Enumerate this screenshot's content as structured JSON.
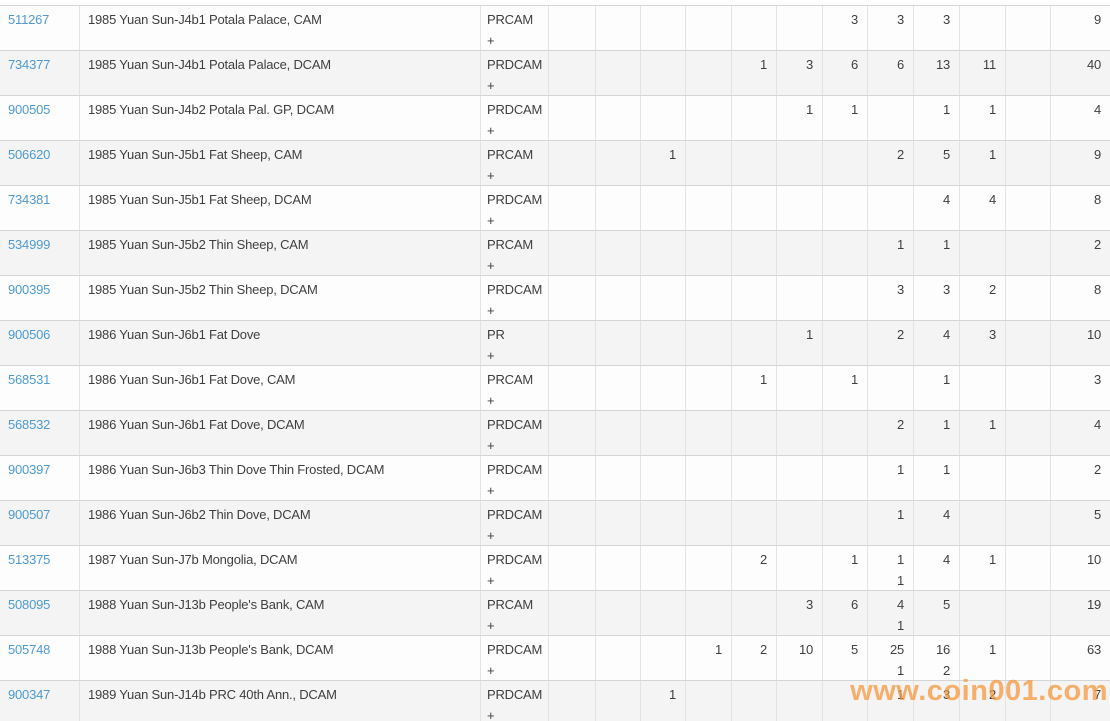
{
  "watermark": {
    "text": "www.coin001.com",
    "color": "#f7973d"
  },
  "colors": {
    "link": "#4f9ace",
    "text": "#3f3f3f",
    "row_alt_background": "#f4f4f4",
    "border_horizontal": "#d5d5d5",
    "border_vertical": "#e3e3e3"
  },
  "table": {
    "grade_column_count": 11,
    "rows": [
      {
        "cert": "511267",
        "description": "1985 Yuan Sun-J4b1 Potala Palace, CAM",
        "designation": "PRCAM",
        "designation_suffix": "+",
        "grades": [
          "",
          "",
          "",
          "",
          "",
          "",
          "3",
          "3",
          "3",
          "",
          ""
        ],
        "total": "9"
      },
      {
        "cert": "734377",
        "description": "1985 Yuan Sun-J4b1 Potala Palace, DCAM",
        "designation": "PRDCAM",
        "designation_suffix": "+",
        "grades": [
          "",
          "",
          "",
          "",
          "1",
          "3",
          "6",
          "6",
          "13",
          "11",
          ""
        ],
        "total": "40"
      },
      {
        "cert": "900505",
        "description": "1985 Yuan Sun-J4b2 Potala Pal. GP, DCAM",
        "designation": "PRDCAM",
        "designation_suffix": "+",
        "grades": [
          "",
          "",
          "",
          "",
          "",
          "1",
          "1",
          "",
          "1",
          "1",
          ""
        ],
        "total": "4"
      },
      {
        "cert": "506620",
        "description": "1985 Yuan Sun-J5b1 Fat Sheep, CAM",
        "designation": "PRCAM",
        "designation_suffix": "+",
        "grades": [
          "",
          "",
          "1",
          "",
          "",
          "",
          "",
          "2",
          "5",
          "1",
          ""
        ],
        "total": "9"
      },
      {
        "cert": "734381",
        "description": "1985 Yuan Sun-J5b1 Fat Sheep, DCAM",
        "designation": "PRDCAM",
        "designation_suffix": "+",
        "grades": [
          "",
          "",
          "",
          "",
          "",
          "",
          "",
          "",
          "4",
          "4",
          ""
        ],
        "total": "8"
      },
      {
        "cert": "534999",
        "description": "1985 Yuan Sun-J5b2 Thin Sheep, CAM",
        "designation": "PRCAM",
        "designation_suffix": "+",
        "grades": [
          "",
          "",
          "",
          "",
          "",
          "",
          "",
          "1",
          "1",
          "",
          ""
        ],
        "total": "2"
      },
      {
        "cert": "900395",
        "description": "1985 Yuan Sun-J5b2 Thin Sheep, DCAM",
        "designation": "PRDCAM",
        "designation_suffix": "+",
        "grades": [
          "",
          "",
          "",
          "",
          "",
          "",
          "",
          "3",
          "3",
          "2",
          ""
        ],
        "total": "8"
      },
      {
        "cert": "900506",
        "description": "1986 Yuan Sun-J6b1 Fat Dove",
        "designation": "PR",
        "designation_suffix": "+",
        "grades": [
          "",
          "",
          "",
          "",
          "",
          "1",
          "",
          "2",
          "4",
          "3",
          ""
        ],
        "total": "10"
      },
      {
        "cert": "568531",
        "description": "1986 Yuan Sun-J6b1 Fat Dove, CAM",
        "designation": "PRCAM",
        "designation_suffix": "+",
        "grades": [
          "",
          "",
          "",
          "",
          "1",
          "",
          "1",
          "",
          "1",
          "",
          ""
        ],
        "total": "3"
      },
      {
        "cert": "568532",
        "description": "1986 Yuan Sun-J6b1 Fat Dove, DCAM",
        "designation": "PRDCAM",
        "designation_suffix": "+",
        "grades": [
          "",
          "",
          "",
          "",
          "",
          "",
          "",
          "2",
          "1",
          "1",
          ""
        ],
        "total": "4"
      },
      {
        "cert": "900397",
        "description": "1986 Yuan Sun-J6b3 Thin Dove Thin Frosted, DCAM",
        "designation": "PRDCAM",
        "designation_suffix": "+",
        "grades": [
          "",
          "",
          "",
          "",
          "",
          "",
          "",
          "1",
          "1",
          "",
          ""
        ],
        "total": "2"
      },
      {
        "cert": "900507",
        "description": "1986 Yuan Sun-J6b2 Thin Dove, DCAM",
        "designation": "PRDCAM",
        "designation_suffix": "+",
        "grades": [
          "",
          "",
          "",
          "",
          "",
          "",
          "",
          "1",
          "4",
          "",
          ""
        ],
        "total": "5"
      },
      {
        "cert": "513375",
        "description": "1987 Yuan Sun-J7b Mongolia, DCAM",
        "designation": "PRDCAM",
        "designation_suffix": "+",
        "grades": [
          "",
          "",
          "",
          "",
          "2",
          "",
          "1",
          "1|1",
          "4",
          "1",
          ""
        ],
        "total": "10"
      },
      {
        "cert": "508095",
        "description": "1988 Yuan Sun-J13b People's Bank, CAM",
        "designation": "PRCAM",
        "designation_suffix": "+",
        "grades": [
          "",
          "",
          "",
          "",
          "",
          "3",
          "6",
          "4|1",
          "5",
          "",
          ""
        ],
        "total": "19"
      },
      {
        "cert": "505748",
        "description": "1988 Yuan Sun-J13b People's Bank, DCAM",
        "designation": "PRDCAM",
        "designation_suffix": "+",
        "grades": [
          "",
          "",
          "",
          "1",
          "2",
          "10",
          "5",
          "25|1",
          "16|2",
          "1",
          ""
        ],
        "total": "63"
      },
      {
        "cert": "900347",
        "description": "1989 Yuan Sun-J14b PRC 40th Ann., DCAM",
        "designation": "PRDCAM",
        "designation_suffix": "+",
        "grades": [
          "",
          "",
          "1",
          "",
          "",
          "",
          "",
          "1",
          "3",
          "2",
          ""
        ],
        "total": "7"
      }
    ]
  }
}
